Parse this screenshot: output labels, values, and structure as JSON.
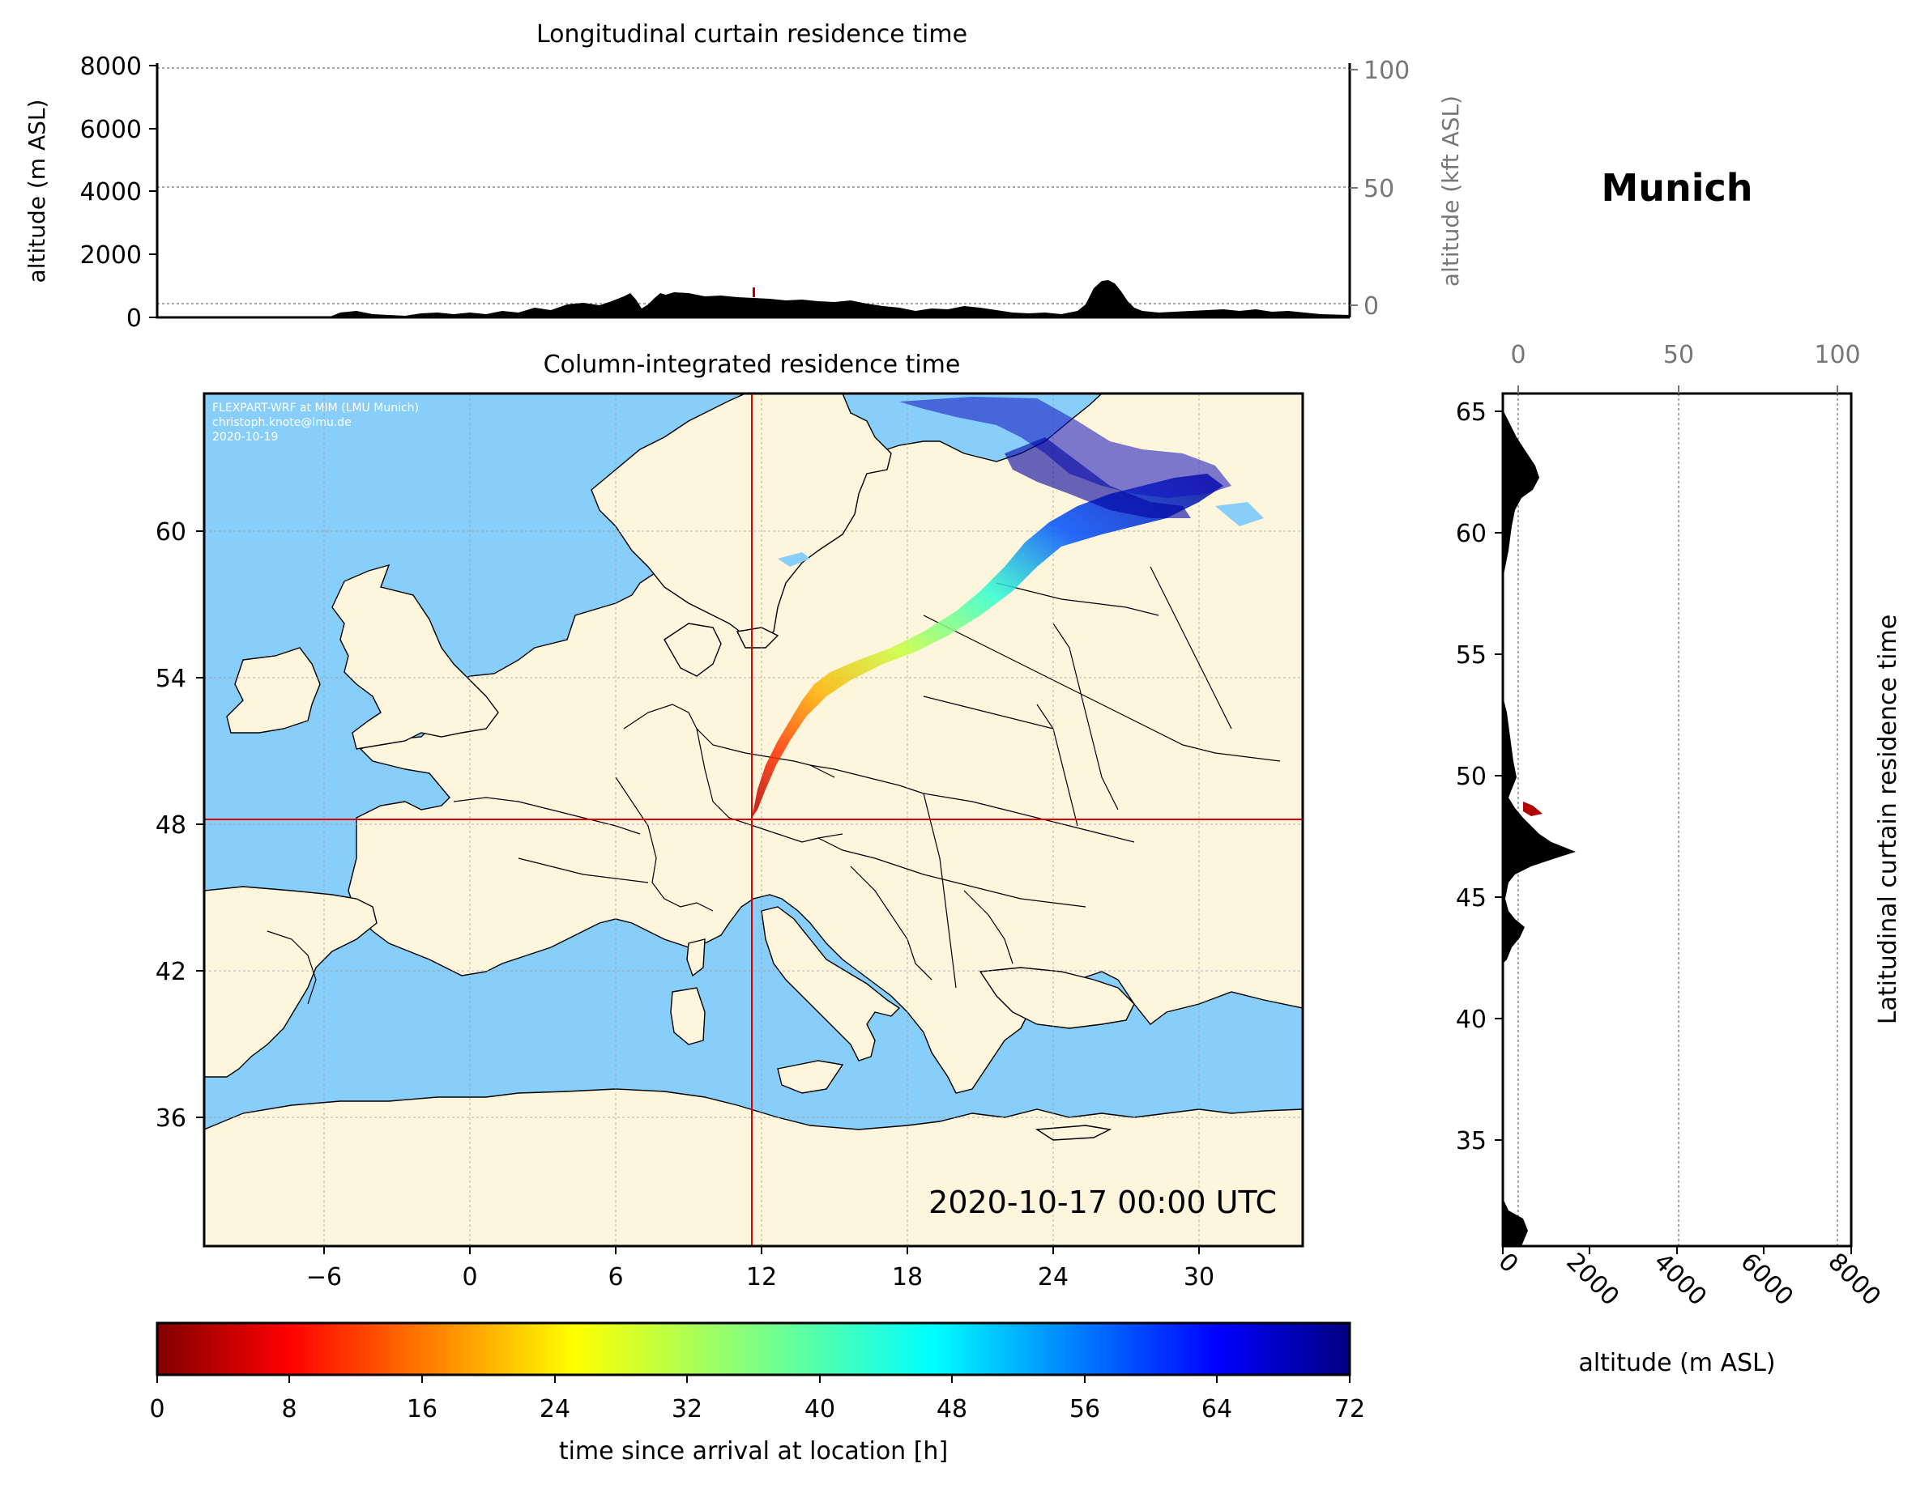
{
  "curtain_lon": {
    "title": "Longitudinal curtain residence time",
    "ylabel_left": "altitude (m ASL)",
    "ylabel_right": "altitude (kft ASL)",
    "left_ticks": [
      "8000",
      "6000",
      "4000",
      "2000",
      "0"
    ],
    "right_ticks": [
      "100",
      "50",
      "0"
    ]
  },
  "map": {
    "title": "Column-integrated residence time",
    "credit_lines": [
      "FLEXPART-WRF at MIM (LMU Munich)",
      "christoph.knote@lmu.de",
      "2020-10-19"
    ],
    "timestamp": "2020-10-17 00:00 UTC",
    "x_ticks": [
      "−6",
      "0",
      "6",
      "12",
      "18",
      "24",
      "30"
    ],
    "y_ticks": [
      "60",
      "54",
      "48",
      "42",
      "36"
    ],
    "ocean_color": "#87cefa",
    "land_color": "#fdf5dc",
    "crosshair_color": "#e00000",
    "release_site": {
      "lon": 11.6,
      "lat": 48.1
    }
  },
  "location": {
    "name": "Munich"
  },
  "curtain_lat": {
    "title": "Latitudinal curtain residence time",
    "xlabel": "altitude (m ASL)",
    "top_ticks": [
      "0",
      "50",
      "100"
    ],
    "bottom_ticks": [
      "0",
      "2000",
      "4000",
      "6000",
      "8000"
    ],
    "y_ticks": [
      "65",
      "60",
      "55",
      "50",
      "45",
      "40",
      "35"
    ]
  },
  "colorbar": {
    "label": "time since arrival at location [h]",
    "ticks": [
      "0",
      "8",
      "16",
      "24",
      "32",
      "40",
      "48",
      "56",
      "64",
      "72"
    ]
  }
}
